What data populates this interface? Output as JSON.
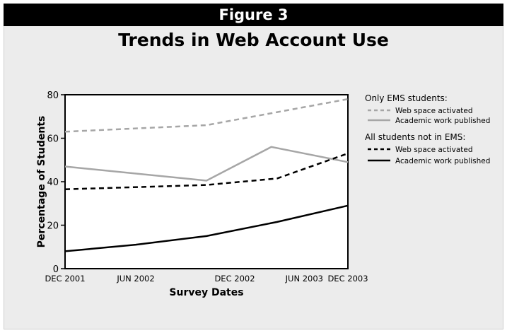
{
  "header": {
    "label": "Figure 3"
  },
  "chart_data": {
    "type": "line",
    "title": "Trends in Web Account Use",
    "xlabel": "Survey Dates",
    "ylabel": "Percentage of Students",
    "x": [
      0,
      6,
      12,
      18,
      24
    ],
    "categories": [
      "DEC 2001",
      "JUN 2002",
      "DEC 2002",
      "JUN 2003",
      "DEC 2003"
    ],
    "tick_x": [
      0,
      6,
      14.4,
      20.3,
      24
    ],
    "ylim": [
      0,
      80
    ],
    "yticks": [
      0,
      20,
      40,
      60,
      80
    ],
    "legend": {
      "placement": "right",
      "groups": [
        {
          "heading": "Only EMS students:",
          "entries": [
            0,
            1
          ]
        },
        {
          "heading": "All students not in EMS:",
          "entries": [
            2,
            3
          ]
        }
      ]
    },
    "series": [
      {
        "name": "Web space activated",
        "group": "Only EMS students",
        "color": "#a6a6a6",
        "dash": true,
        "points": [
          [
            0,
            63
          ],
          [
            12,
            66
          ],
          [
            18,
            72
          ],
          [
            24,
            78
          ]
        ]
      },
      {
        "name": "Academic work published",
        "group": "Only EMS students",
        "color": "#a6a6a6",
        "dash": false,
        "points": [
          [
            0,
            47
          ],
          [
            12,
            40.5
          ],
          [
            17.5,
            56
          ],
          [
            24,
            49
          ]
        ]
      },
      {
        "name": "Web space activated",
        "group": "All students not in EMS",
        "color": "#000000",
        "dash": true,
        "points": [
          [
            0,
            36.5
          ],
          [
            12,
            38.5
          ],
          [
            18,
            41.5
          ],
          [
            24,
            53
          ]
        ]
      },
      {
        "name": "Academic work published",
        "group": "All students not in EMS",
        "color": "#000000",
        "dash": false,
        "points": [
          [
            0,
            8
          ],
          [
            6,
            11
          ],
          [
            12,
            15
          ],
          [
            18,
            21.5
          ],
          [
            24,
            29
          ]
        ]
      }
    ]
  }
}
